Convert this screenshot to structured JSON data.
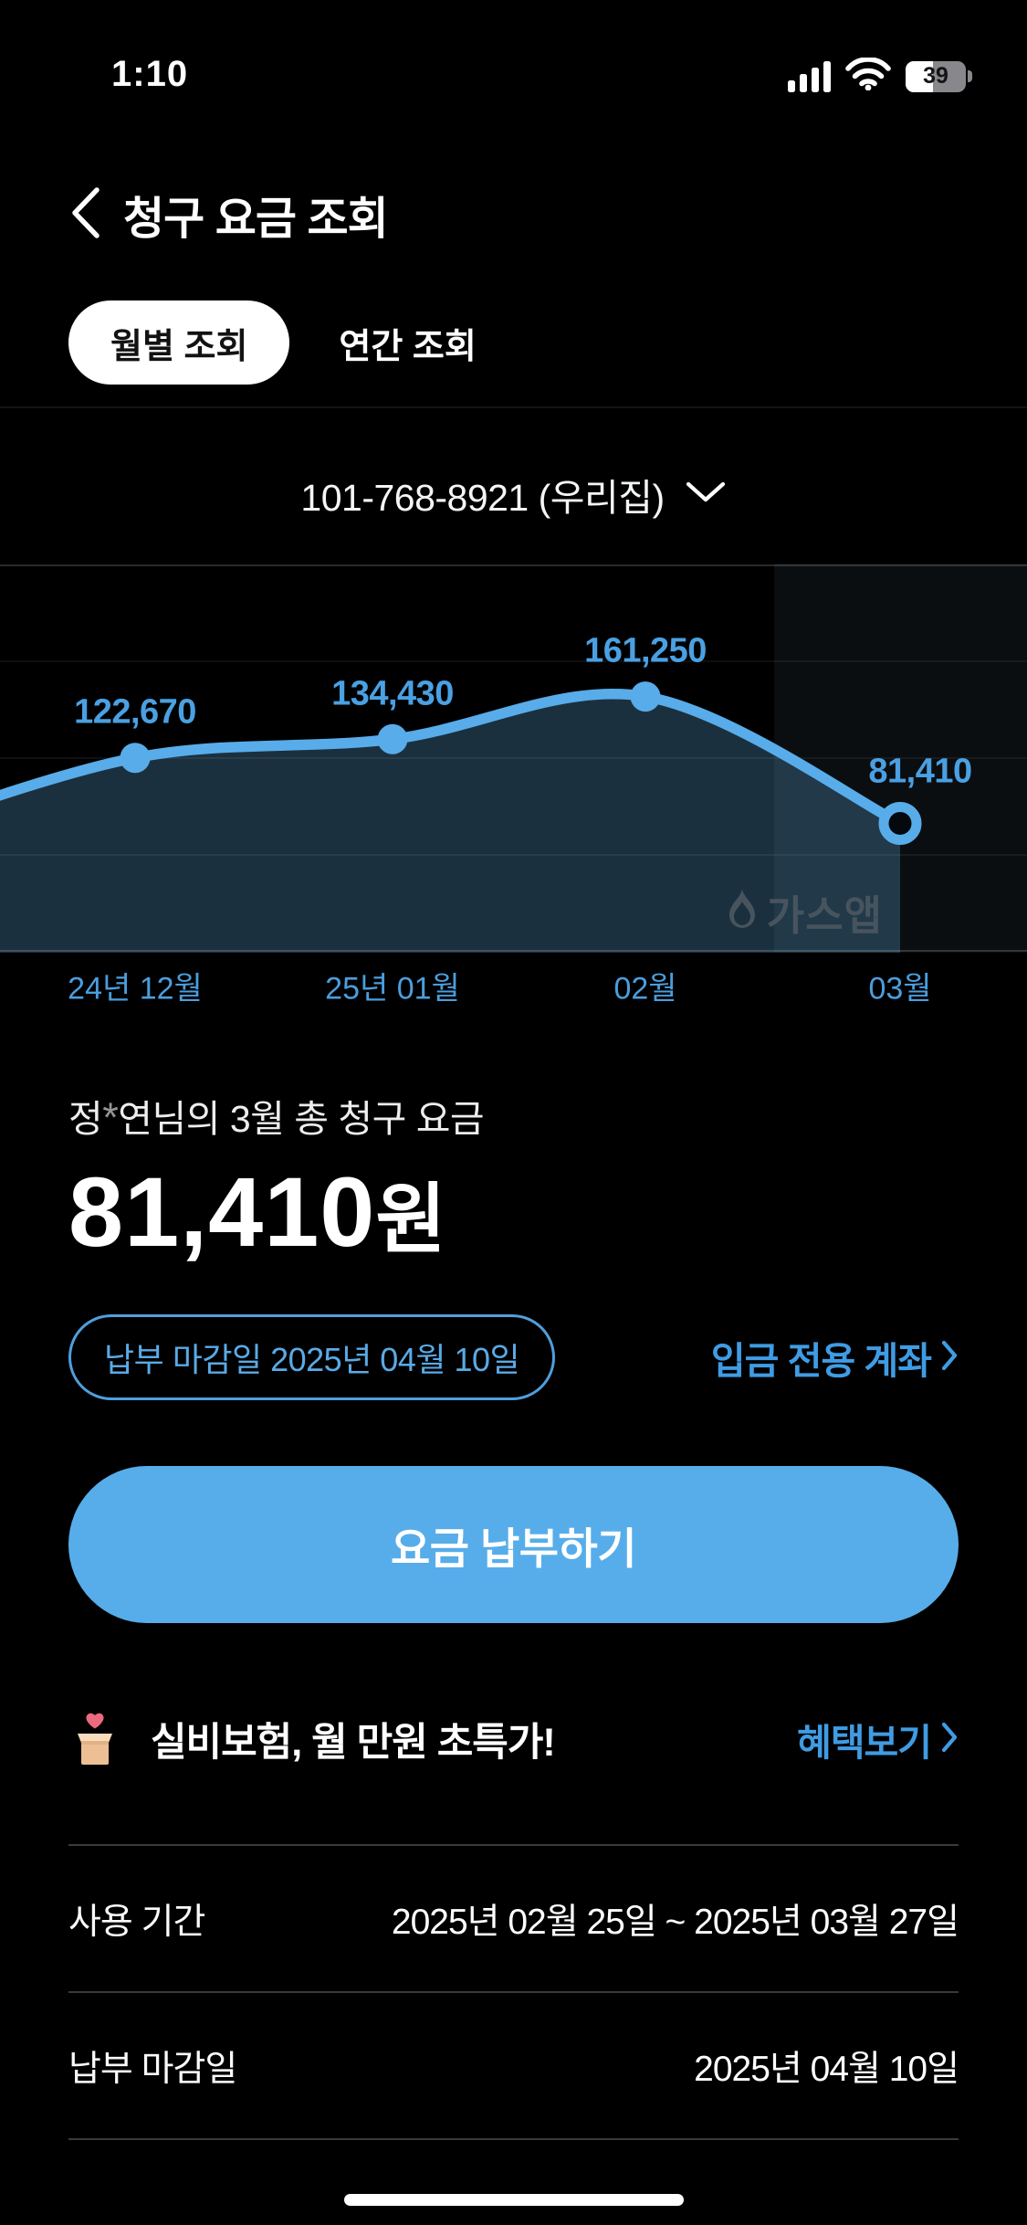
{
  "status_bar": {
    "time": "1:10",
    "battery_percent": "39",
    "signal_icon": "cellular-signal-icon",
    "wifi_icon": "wifi-icon",
    "battery_icon": "battery-icon"
  },
  "header": {
    "back_icon": "chevron-left-icon",
    "title": "청구 요금 조회"
  },
  "tabs": [
    {
      "label": "월별 조회",
      "selected": true
    },
    {
      "label": "연간 조회",
      "selected": false
    }
  ],
  "account_selector": {
    "value": "101-768-8921 (우리집)",
    "chevron_icon": "chevron-down-icon"
  },
  "chart_data": {
    "type": "line",
    "categories": [
      "24년 12월",
      "25년 01월",
      "02월",
      "03월"
    ],
    "values": [
      122670,
      134430,
      161250,
      81410
    ],
    "value_labels": [
      "122,670",
      "134,430",
      "161,250",
      "81,410"
    ],
    "highlighted_index": 3,
    "ylim": [
      0,
      245000
    ],
    "grid": true,
    "legend": "none",
    "line_color": "#58ace9",
    "area_color": "rgba(90,160,205,0.30)",
    "highlight_band_color": "rgba(130,175,215,0.08)",
    "label_color": "#4aa0e2",
    "axis_label_color": "#4a9edd",
    "watermark": "가스앱",
    "watermark_icon": "flame-icon"
  },
  "summary": {
    "owner_prefix": "정",
    "owner_masked": "*",
    "owner_suffix": "연님의 3월 총 청구 요금",
    "amount": "81,410",
    "amount_unit": "원",
    "due_badge": "납부 마감일 2025년 04월 10일",
    "account_link": "입금 전용 계좌"
  },
  "pay_button": {
    "label": "요금 납부하기"
  },
  "promo": {
    "icon": "gift-box-heart-icon",
    "text": "실비보험, 월 만원 초특가!",
    "link": "혜택보기"
  },
  "details": {
    "rows": [
      {
        "label": "사용 기간",
        "value": "2025년 02월 25일 ~ 2025년 03월 27일"
      },
      {
        "label": "납부 마감일",
        "value": "2025년 04월 10일"
      }
    ]
  },
  "colors": {
    "background": "#000000",
    "accent_blue": "#58ace9",
    "link_blue": "#3f9ce4",
    "divider": "#3a3a3c",
    "tab_selected_bg": "#ffffff",
    "tab_selected_text": "#121212",
    "watermark_gray": "#48545d"
  }
}
